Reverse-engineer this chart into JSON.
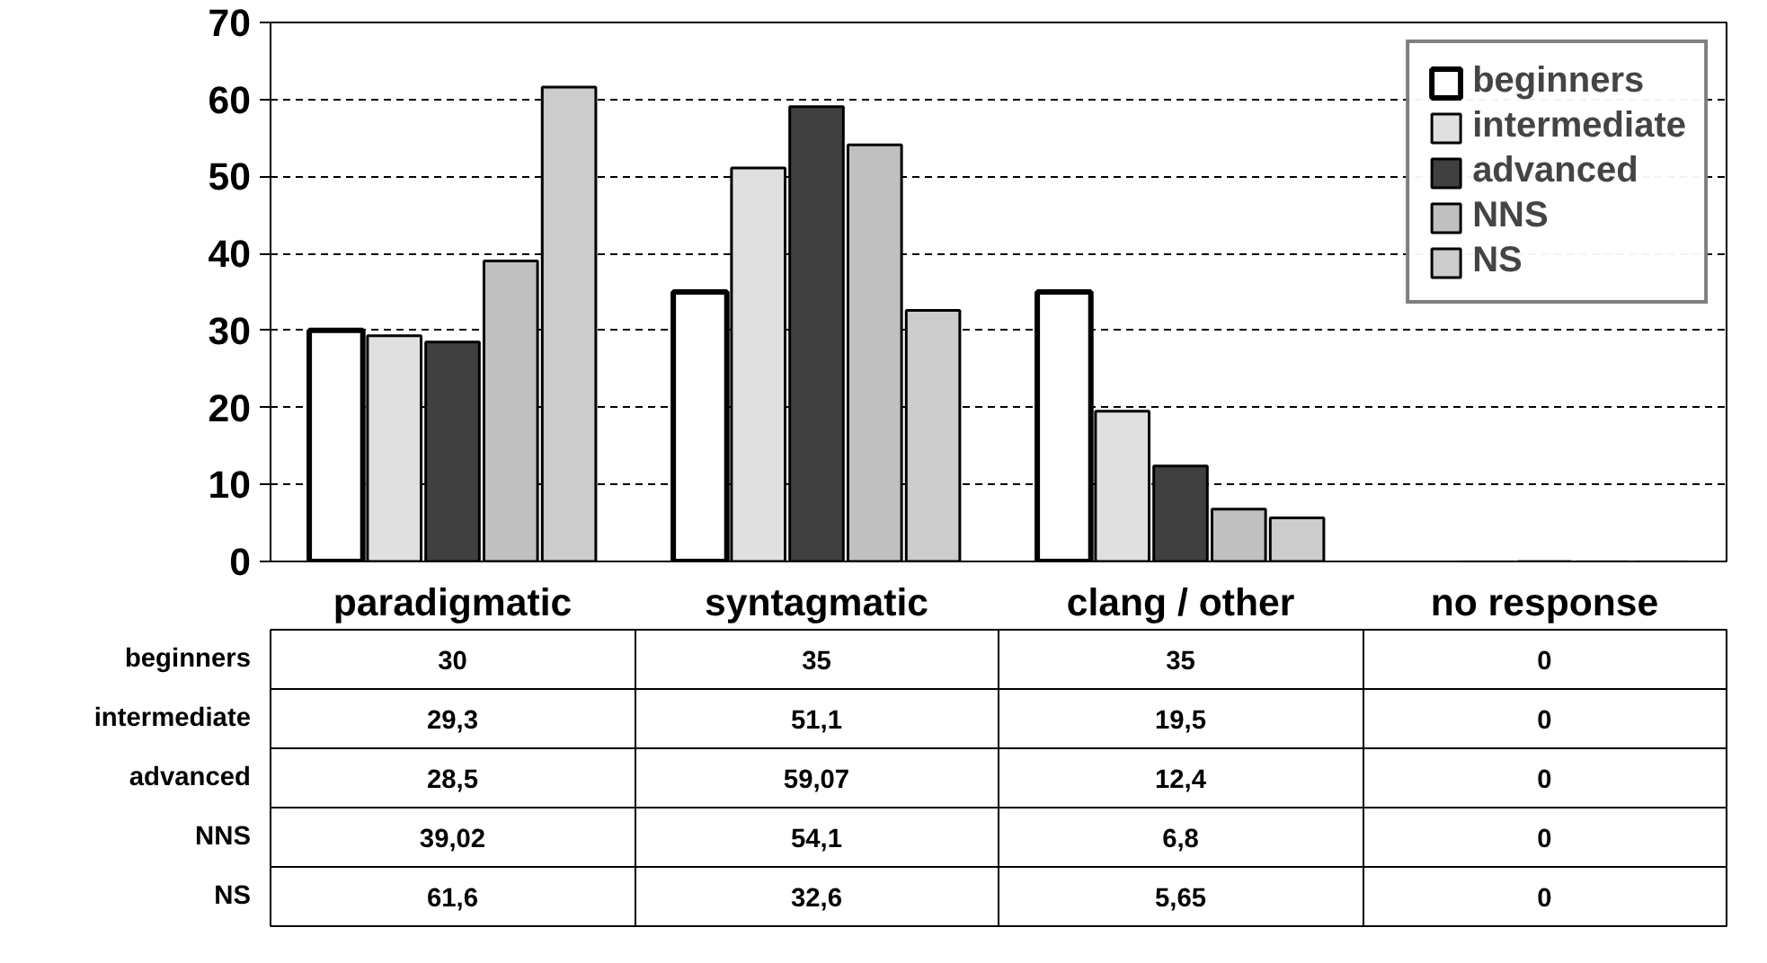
{
  "chart_data": {
    "type": "bar",
    "categories": [
      "paradigmatic",
      "syntagmatic",
      "clang / other",
      "no response"
    ],
    "ylim": [
      0,
      70
    ],
    "yticks": [
      0,
      10,
      20,
      30,
      40,
      50,
      60,
      70
    ],
    "grid": "y",
    "legend": "top right",
    "series": [
      {
        "name": "beginners",
        "color": "#ffffff",
        "values": [
          30,
          35,
          35,
          0
        ],
        "value_labels": [
          "30",
          "35",
          "35",
          "0"
        ]
      },
      {
        "name": "intermediate",
        "color": "#e0e0e0",
        "values": [
          29.3,
          51.1,
          19.5,
          0
        ],
        "value_labels": [
          "29,3",
          "51,1",
          "19,5",
          "0"
        ]
      },
      {
        "name": "advanced",
        "color": "#404040",
        "values": [
          28.5,
          59.07,
          12.4,
          0
        ],
        "value_labels": [
          "28,5",
          "59,07",
          "12,4",
          "0"
        ]
      },
      {
        "name": "NNS",
        "color": "#c0c0c0",
        "values": [
          39.02,
          54.1,
          6.8,
          0
        ],
        "value_labels": [
          "39,02",
          "54,1",
          "6,8",
          "0"
        ]
      },
      {
        "name": "NS",
        "color": "#cccccc",
        "values": [
          61.6,
          32.6,
          5.65,
          0
        ],
        "value_labels": [
          "61,6",
          "32,6",
          "5,65",
          "0"
        ]
      }
    ]
  }
}
